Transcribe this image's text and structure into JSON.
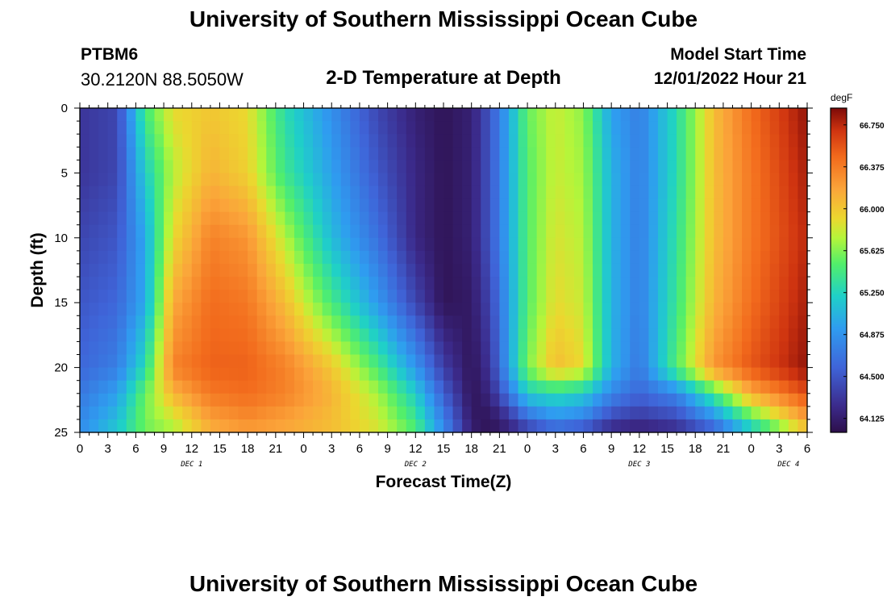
{
  "header": {
    "title": "University of Southern Mississippi Ocean Cube",
    "station": "PTBM6",
    "coords": "30.2120N  88.5050W",
    "subtitle": "2-D Temperature at Depth",
    "model_start_label": "Model Start Time",
    "model_start_value": "12/01/2022 Hour 21"
  },
  "footer": {
    "title": "University of Southern Mississippi Ocean Cube"
  },
  "chart_data": {
    "type": "heatmap",
    "title": "2-D Temperature at Depth",
    "xlabel": "Forecast Time(Z)",
    "ylabel": "Depth (ft)",
    "x_tick_labels": [
      "0",
      "3",
      "6",
      "9",
      "12",
      "15",
      "18",
      "21",
      "0",
      "3",
      "6",
      "9",
      "12",
      "15",
      "18",
      "21",
      "0",
      "3",
      "6",
      "9",
      "12",
      "15",
      "18",
      "21",
      "0",
      "3",
      "6"
    ],
    "day_labels": [
      "DEC 1",
      "DEC 2",
      "DEC 3",
      "DEC 4"
    ],
    "y_tick_labels": [
      "0",
      "5",
      "10",
      "15",
      "20",
      "25"
    ],
    "ylim": [
      0,
      25
    ],
    "y_inverted": true,
    "x_hours_range": [
      0,
      78
    ],
    "colorbar": {
      "unit": "degF",
      "tick_labels": [
        "66.750",
        "66.375",
        "66.000",
        "65.625",
        "65.250",
        "64.875",
        "64.500",
        "64.125"
      ],
      "range": [
        64.0,
        66.9
      ],
      "colormap": "turbo"
    },
    "time_hours": [
      0,
      4,
      7,
      10,
      14,
      18,
      22,
      27,
      32,
      36,
      39,
      42,
      44,
      46,
      48,
      51,
      54,
      57,
      60,
      64,
      68,
      72,
      78
    ],
    "depth_ft": [
      0,
      5,
      10,
      15,
      20,
      22,
      24,
      25
    ],
    "temperature_degF": [
      [
        64.3,
        64.4,
        65.45,
        65.9,
        66.0,
        65.9,
        65.3,
        64.85,
        64.4,
        64.15,
        64.05,
        64.15,
        64.5,
        65.0,
        65.55,
        65.8,
        65.65,
        64.95,
        64.75,
        65.3,
        66.05,
        66.45,
        66.85
      ],
      [
        64.3,
        64.4,
        65.2,
        65.75,
        66.1,
        65.95,
        65.4,
        64.95,
        64.5,
        64.2,
        64.05,
        64.15,
        64.5,
        65.0,
        65.5,
        65.8,
        65.7,
        65.05,
        64.75,
        65.3,
        66.05,
        66.4,
        66.8
      ],
      [
        64.4,
        64.5,
        65.0,
        65.9,
        66.35,
        66.25,
        65.75,
        65.1,
        64.65,
        64.2,
        64.05,
        64.15,
        64.5,
        65.0,
        65.5,
        65.85,
        65.75,
        65.05,
        64.75,
        65.35,
        66.05,
        66.4,
        66.75
      ],
      [
        64.5,
        64.6,
        65.0,
        66.15,
        66.45,
        66.4,
        66.05,
        65.45,
        64.9,
        64.4,
        64.05,
        64.1,
        64.4,
        64.95,
        65.5,
        65.9,
        65.8,
        65.05,
        64.75,
        65.4,
        66.1,
        66.45,
        66.8
      ],
      [
        64.6,
        64.75,
        65.3,
        66.35,
        66.5,
        66.5,
        66.35,
        66.0,
        65.45,
        64.9,
        64.35,
        64.05,
        64.3,
        64.95,
        65.6,
        66.05,
        65.9,
        65.05,
        64.7,
        65.5,
        66.25,
        66.55,
        66.85
      ],
      [
        64.7,
        64.95,
        65.55,
        66.1,
        66.4,
        66.45,
        66.35,
        66.1,
        65.7,
        65.2,
        64.55,
        64.05,
        64.2,
        64.7,
        65.2,
        65.3,
        65.2,
        64.8,
        64.6,
        64.8,
        65.45,
        66.15,
        66.6
      ],
      [
        64.8,
        65.1,
        65.6,
        65.8,
        66.2,
        66.3,
        66.2,
        66.05,
        65.8,
        65.4,
        64.75,
        64.1,
        64.05,
        64.25,
        64.6,
        64.85,
        64.75,
        64.4,
        64.3,
        64.4,
        64.8,
        65.45,
        66.2
      ],
      [
        64.85,
        65.2,
        65.55,
        65.7,
        66.1,
        66.2,
        66.15,
        66.05,
        65.85,
        65.5,
        64.85,
        64.15,
        64.05,
        64.15,
        64.3,
        64.5,
        64.4,
        64.15,
        64.1,
        64.2,
        64.5,
        65.1,
        65.95
      ]
    ]
  }
}
